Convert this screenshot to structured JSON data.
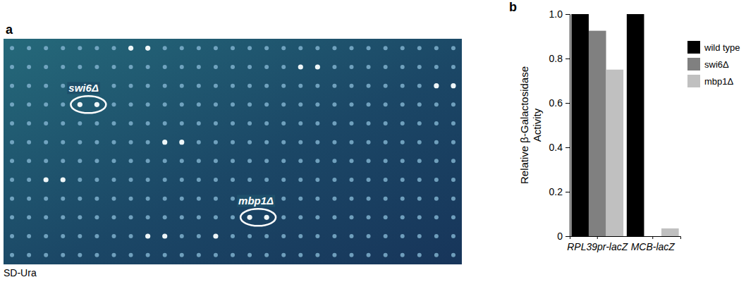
{
  "chart_data": {
    "type": "bar",
    "panel_label": "b",
    "ylabel": "Relative β-Galactosidase Activity",
    "categories": [
      "RPL39pr-lacZ",
      "MCB-lacZ"
    ],
    "series": [
      {
        "name": "wild type",
        "color": "#000000",
        "values": [
          1.0,
          1.0
        ]
      },
      {
        "name": "swi6Δ",
        "color": "#808080",
        "values": [
          0.925,
          0
        ]
      },
      {
        "name": "mbp1Δ",
        "color": "#c0c0c0",
        "values": [
          0.75,
          0.035
        ]
      }
    ],
    "ylim": [
      0,
      1
    ],
    "yticks": [
      0,
      0.2,
      0.4,
      0.6,
      0.8,
      {
        "value": 1,
        "label": "1.0"
      }
    ],
    "grid": false,
    "legend": "right"
  },
  "image_panel": {
    "panel_label": "a",
    "labels": [
      "swi6Δ",
      "mbp1Δ"
    ],
    "caption": "SD-Ura"
  }
}
